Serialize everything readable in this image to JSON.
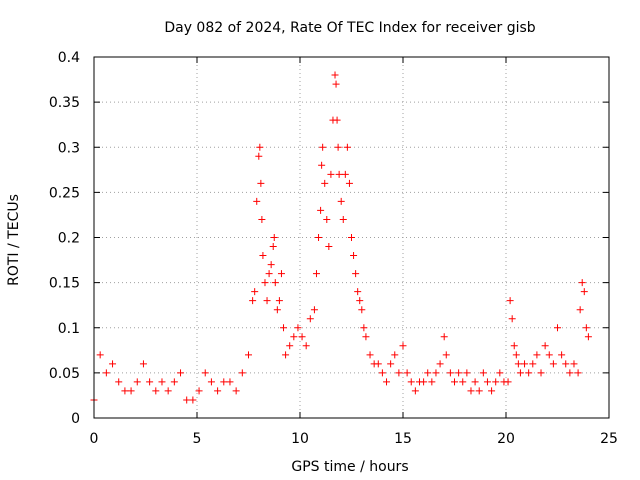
{
  "chart_data": {
    "type": "scatter",
    "title": "Day 082 of 2024, Rate Of TEC Index for receiver gisb",
    "xlabel": "GPS time / hours",
    "ylabel": "ROTI / TECUs",
    "xlim": [
      0,
      25
    ],
    "ylim": [
      0,
      0.4
    ],
    "xticks": [
      0,
      5,
      10,
      15,
      20,
      25
    ],
    "xtick_labels": [
      "0",
      "5",
      "10",
      "15",
      "20",
      "25"
    ],
    "yticks": [
      0,
      0.05,
      0.1,
      0.15,
      0.2,
      0.25,
      0.3,
      0.35,
      0.4
    ],
    "ytick_labels": [
      "0",
      "0.05",
      "0.1",
      "0.15",
      "0.2",
      "0.25",
      "0.3",
      "0.35",
      "0.4"
    ],
    "grid": true,
    "marker": "+",
    "series": [
      {
        "name": "ROTI",
        "color": "#ff0000",
        "x": [
          0.0,
          0.3,
          0.6,
          0.9,
          1.2,
          1.5,
          1.8,
          2.1,
          2.4,
          2.7,
          3.0,
          3.3,
          3.6,
          3.9,
          4.2,
          4.5,
          4.8,
          5.1,
          5.4,
          5.7,
          6.0,
          6.3,
          6.6,
          6.9,
          7.2,
          7.5,
          7.7,
          7.8,
          7.9,
          8.0,
          8.05,
          8.1,
          8.15,
          8.2,
          8.3,
          8.4,
          8.5,
          8.6,
          8.7,
          8.75,
          8.8,
          8.9,
          9.0,
          9.1,
          9.2,
          9.3,
          9.5,
          9.7,
          9.9,
          10.1,
          10.3,
          10.5,
          10.7,
          10.8,
          10.9,
          11.0,
          11.05,
          11.1,
          11.2,
          11.3,
          11.4,
          11.5,
          11.6,
          11.7,
          11.75,
          11.8,
          11.85,
          11.9,
          12.0,
          12.1,
          12.2,
          12.3,
          12.4,
          12.5,
          12.6,
          12.7,
          12.8,
          12.9,
          13.0,
          13.1,
          13.2,
          13.4,
          13.6,
          13.8,
          14.0,
          14.2,
          14.4,
          14.6,
          14.8,
          15.0,
          15.2,
          15.4,
          15.6,
          15.8,
          16.0,
          16.2,
          16.4,
          16.6,
          16.8,
          17.0,
          17.1,
          17.3,
          17.5,
          17.7,
          17.9,
          18.1,
          18.3,
          18.5,
          18.7,
          18.9,
          19.1,
          19.3,
          19.5,
          19.7,
          19.9,
          20.1,
          20.2,
          20.3,
          20.4,
          20.5,
          20.6,
          20.7,
          20.9,
          21.1,
          21.3,
          21.5,
          21.7,
          21.9,
          22.1,
          22.3,
          22.5,
          22.7,
          22.9,
          23.1,
          23.3,
          23.5,
          23.6,
          23.7,
          23.8,
          23.9,
          24.0
        ],
        "values": [
          0.02,
          0.07,
          0.05,
          0.06,
          0.04,
          0.03,
          0.03,
          0.04,
          0.06,
          0.04,
          0.03,
          0.04,
          0.03,
          0.04,
          0.05,
          0.02,
          0.02,
          0.03,
          0.05,
          0.04,
          0.03,
          0.04,
          0.04,
          0.03,
          0.05,
          0.07,
          0.13,
          0.14,
          0.24,
          0.29,
          0.3,
          0.26,
          0.22,
          0.18,
          0.15,
          0.13,
          0.16,
          0.17,
          0.19,
          0.2,
          0.15,
          0.12,
          0.13,
          0.16,
          0.1,
          0.07,
          0.08,
          0.09,
          0.1,
          0.09,
          0.08,
          0.11,
          0.12,
          0.16,
          0.2,
          0.23,
          0.28,
          0.3,
          0.26,
          0.22,
          0.19,
          0.27,
          0.33,
          0.38,
          0.37,
          0.33,
          0.3,
          0.27,
          0.24,
          0.22,
          0.27,
          0.3,
          0.26,
          0.2,
          0.18,
          0.16,
          0.14,
          0.13,
          0.12,
          0.1,
          0.09,
          0.07,
          0.06,
          0.06,
          0.05,
          0.04,
          0.06,
          0.07,
          0.05,
          0.08,
          0.05,
          0.04,
          0.03,
          0.04,
          0.04,
          0.05,
          0.04,
          0.05,
          0.06,
          0.09,
          0.07,
          0.05,
          0.04,
          0.05,
          0.04,
          0.05,
          0.03,
          0.04,
          0.03,
          0.05,
          0.04,
          0.03,
          0.04,
          0.05,
          0.04,
          0.04,
          0.13,
          0.11,
          0.08,
          0.07,
          0.06,
          0.05,
          0.06,
          0.05,
          0.06,
          0.07,
          0.05,
          0.08,
          0.07,
          0.06,
          0.1,
          0.07,
          0.06,
          0.05,
          0.06,
          0.05,
          0.12,
          0.15,
          0.14,
          0.1,
          0.09
        ]
      }
    ]
  }
}
